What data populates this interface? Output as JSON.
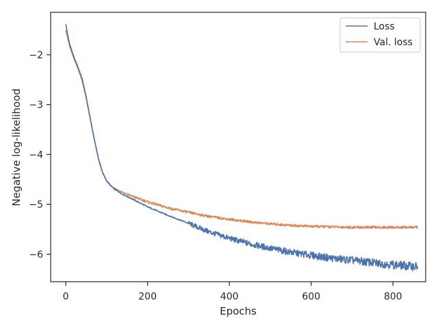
{
  "chart_data": {
    "type": "line",
    "xlabel": "Epochs",
    "ylabel": "Negative log-likelihood",
    "xlim": [
      -37,
      880
    ],
    "ylim": [
      -6.55,
      -1.15
    ],
    "xticks": [
      0,
      200,
      400,
      600,
      800
    ],
    "xtick_labels": [
      "0",
      "200",
      "400",
      "600",
      "800"
    ],
    "yticks": [
      -2,
      -3,
      -4,
      -5,
      -6
    ],
    "ytick_labels": [
      "−2",
      "−3",
      "−4",
      "−5",
      "−6"
    ],
    "grid": false,
    "legend_position": "top-right",
    "series": [
      {
        "name": "Loss",
        "color": "#4c72b0",
        "x": [
          0,
          5,
          10,
          20,
          30,
          40,
          50,
          60,
          70,
          80,
          90,
          100,
          110,
          120,
          140,
          160,
          200,
          250,
          300,
          350,
          400,
          450,
          500,
          550,
          600,
          650,
          700,
          750,
          800,
          860
        ],
        "y": [
          -1.38,
          -1.62,
          -1.8,
          -2.05,
          -2.25,
          -2.48,
          -2.85,
          -3.28,
          -3.7,
          -4.08,
          -4.36,
          -4.53,
          -4.63,
          -4.7,
          -4.8,
          -4.88,
          -5.05,
          -5.22,
          -5.38,
          -5.55,
          -5.68,
          -5.79,
          -5.88,
          -5.96,
          -6.02,
          -6.08,
          -6.12,
          -6.17,
          -6.21,
          -6.25
        ]
      },
      {
        "name": "Val. loss",
        "color": "#dd8452",
        "x": [
          0,
          5,
          10,
          20,
          30,
          40,
          50,
          60,
          70,
          80,
          90,
          100,
          110,
          120,
          140,
          160,
          200,
          250,
          300,
          350,
          400,
          450,
          500,
          550,
          600,
          650,
          700,
          750,
          800,
          860
        ],
        "y": [
          -1.5,
          -1.68,
          -1.85,
          -2.08,
          -2.28,
          -2.52,
          -2.88,
          -3.3,
          -3.72,
          -4.1,
          -4.37,
          -4.53,
          -4.62,
          -4.68,
          -4.76,
          -4.83,
          -4.95,
          -5.07,
          -5.16,
          -5.24,
          -5.3,
          -5.35,
          -5.39,
          -5.42,
          -5.44,
          -5.45,
          -5.46,
          -5.46,
          -5.46,
          -5.46
        ]
      }
    ]
  }
}
